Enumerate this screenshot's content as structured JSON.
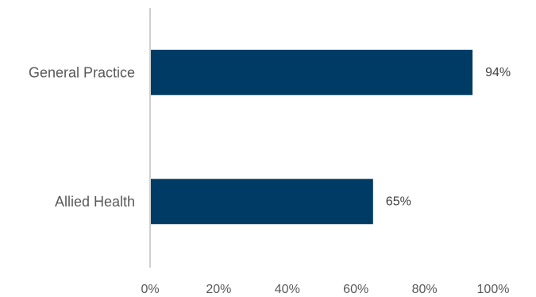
{
  "chart_data": {
    "type": "bar",
    "orientation": "horizontal",
    "categories": [
      "General Practice",
      "Allied Health"
    ],
    "values": [
      94,
      65
    ],
    "value_labels": [
      "94%",
      "65%"
    ],
    "xlim": [
      0,
      100
    ],
    "x_ticks": [
      0,
      20,
      40,
      60,
      80,
      100
    ],
    "x_tick_labels": [
      "0%",
      "20%",
      "40%",
      "60%",
      "80%",
      "100%"
    ],
    "bar_color": "#003B66",
    "axis_color": "#BFBFBF",
    "grid": false,
    "legend": "none"
  }
}
